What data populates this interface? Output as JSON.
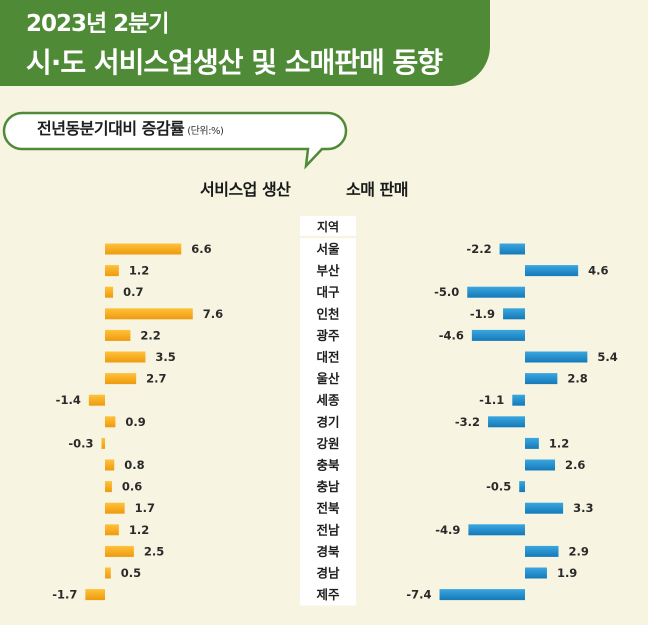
{
  "header": {
    "year": "2023년 2분기",
    "title": "시·도 서비스업생산 및 소매판매 동향"
  },
  "note": {
    "label": "전년동분기대비 증감률",
    "unit": "(단위:%)"
  },
  "colors": {
    "header_green": "#4f8a36",
    "service_bar": "#f2a516",
    "retail_bar": "#1f8fcf"
  },
  "chart_data": {
    "type": "bar",
    "title": "",
    "region_header": "지역",
    "categories": [
      "서울",
      "부산",
      "대구",
      "인천",
      "광주",
      "대전",
      "울산",
      "세종",
      "경기",
      "강원",
      "충북",
      "충남",
      "전북",
      "전남",
      "경북",
      "경남",
      "제주"
    ],
    "series": [
      {
        "name": "서비스업 생산",
        "values": [
          6.6,
          1.2,
          0.7,
          7.6,
          2.2,
          3.5,
          2.7,
          -1.4,
          0.9,
          -0.3,
          0.8,
          0.6,
          1.7,
          1.2,
          2.5,
          0.5,
          -1.7
        ]
      },
      {
        "name": "소매 판매",
        "values": [
          -2.2,
          4.6,
          -5.0,
          -1.9,
          -4.6,
          5.4,
          2.8,
          -1.1,
          -3.2,
          1.2,
          2.6,
          -0.5,
          3.3,
          -4.9,
          2.9,
          1.9,
          -7.4
        ]
      }
    ],
    "value_labels": [
      [
        "6.6",
        "1.2",
        "0.7",
        "7.6",
        "2.2",
        "3.5",
        "2.7",
        "-1.4",
        "0.9",
        "-0.3",
        "0.8",
        "0.6",
        "1.7",
        "1.2",
        "2.5",
        "0.5",
        "-1.7"
      ],
      [
        "-2.2",
        "4.6",
        "-5.0",
        "-1.9",
        "-4.6",
        "5.4",
        "2.8",
        "-1.1",
        "-3.2",
        "1.2",
        "2.6",
        "-0.5",
        "3.3",
        "-4.9",
        "2.9",
        "1.9",
        "-7.4"
      ]
    ]
  }
}
